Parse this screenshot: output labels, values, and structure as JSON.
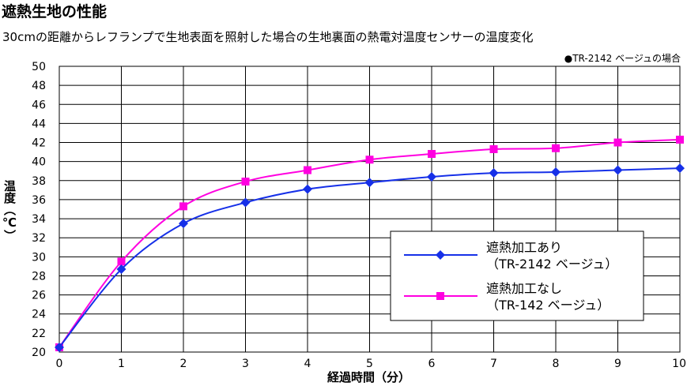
{
  "chart_data": {
    "type": "line",
    "title": "遮熱生地の性能",
    "subtitle": "30cmの距離からレフランプで生地表面を照射した場合の生地裏面の熱電対温度センサーの温度変化",
    "note": "●TR-2142 ベージュの場合",
    "xlabel": "経過時間（分）",
    "ylabel": "温度（℃）",
    "xlim": [
      0,
      10
    ],
    "ylim": [
      20,
      50
    ],
    "x": [
      0,
      1,
      2,
      3,
      4,
      5,
      6,
      7,
      8,
      9,
      10
    ],
    "x_ticks": [
      "0",
      "1",
      "2",
      "3",
      "4",
      "5",
      "6",
      "7",
      "8",
      "9",
      "10"
    ],
    "y_ticks": [
      "20",
      "22",
      "24",
      "26",
      "28",
      "30",
      "32",
      "34",
      "36",
      "38",
      "40",
      "42",
      "44",
      "46",
      "48",
      "50"
    ],
    "grid": true,
    "legend_position": "lower-right",
    "series": [
      {
        "name_line1": "遮熱加工あり",
        "name_line2": "（TR-2142 ベージュ）",
        "color": "#1630e8",
        "marker": "diamond",
        "values": [
          20.5,
          28.7,
          33.5,
          35.7,
          37.1,
          37.8,
          38.4,
          38.8,
          38.9,
          39.1,
          39.3
        ]
      },
      {
        "name_line1": "遮熱加工なし",
        "name_line2": "（TR-142 ベージュ）",
        "color": "#ff00e0",
        "marker": "square",
        "values": [
          20.5,
          29.5,
          35.3,
          37.9,
          39.1,
          40.2,
          40.8,
          41.3,
          41.4,
          42.0,
          42.3
        ]
      }
    ]
  }
}
